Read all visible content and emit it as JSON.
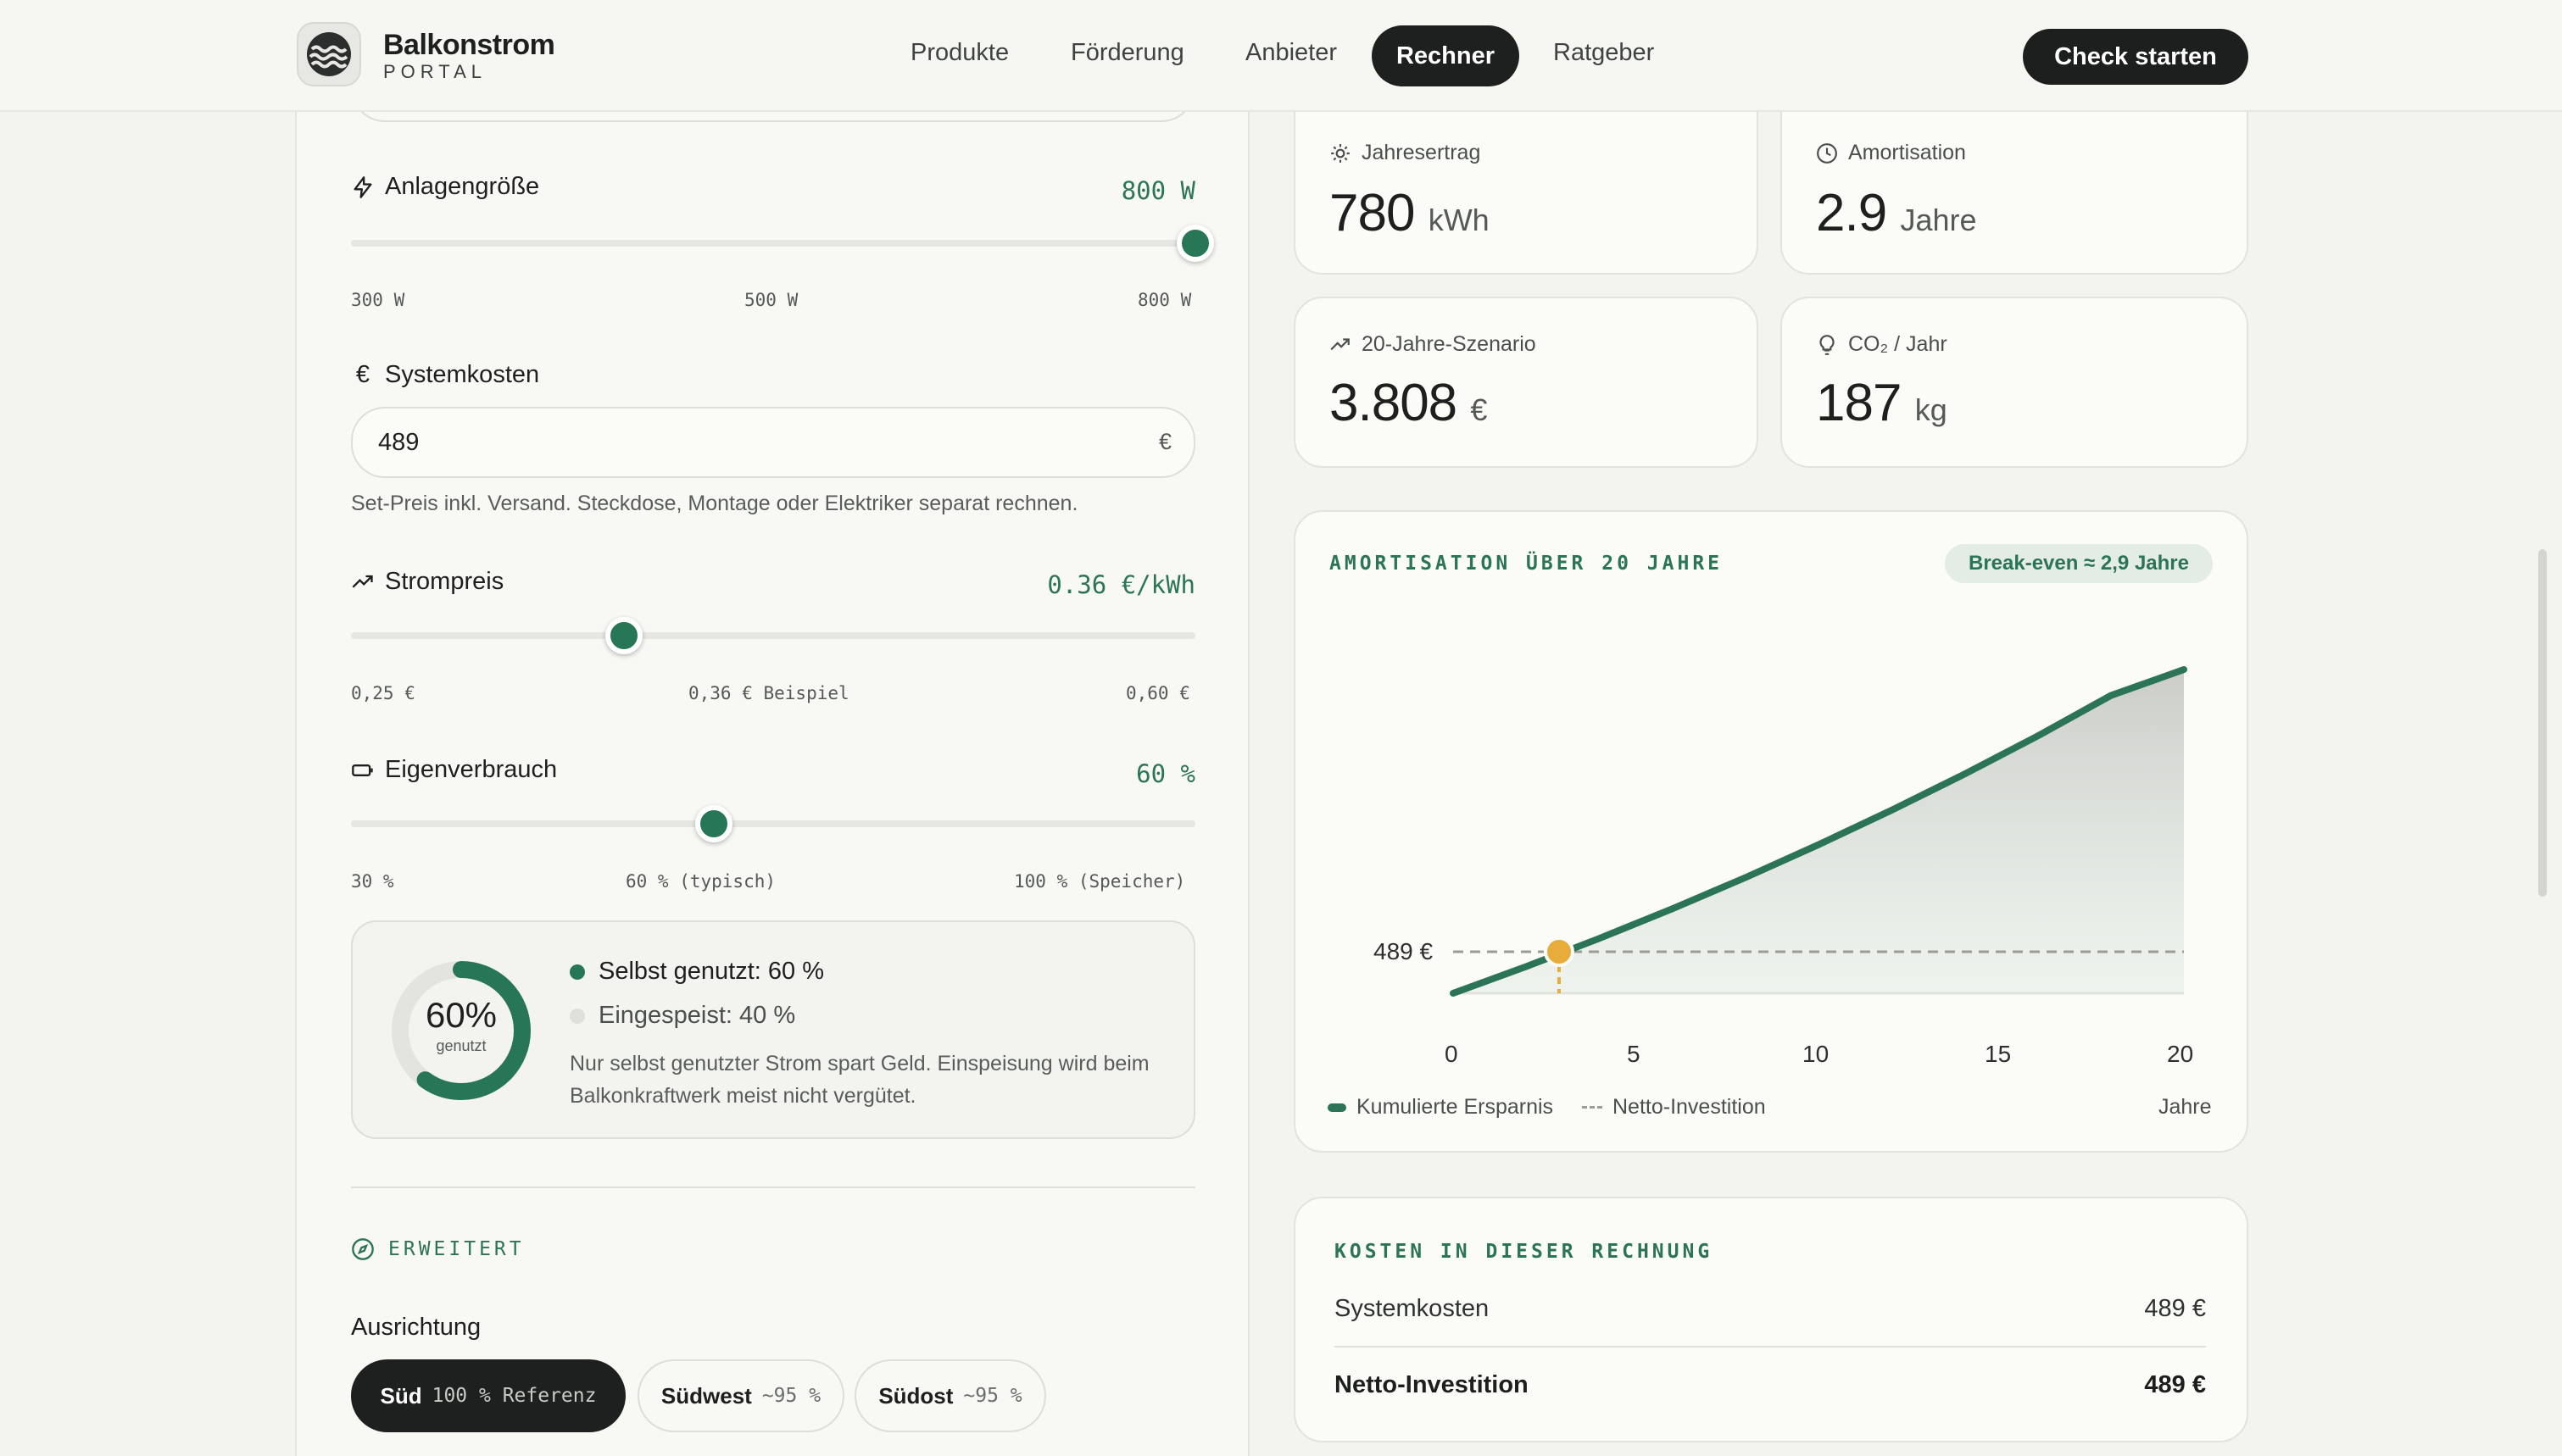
{
  "header": {
    "brand_name": "Balkonstrom",
    "brand_sub": "PORTAL",
    "nav": [
      "Produkte",
      "Förderung",
      "Anbieter",
      "Rechner",
      "Ratgeber"
    ],
    "cta": "Check starten"
  },
  "left": {
    "anlage": {
      "label": "Anlagengröße",
      "value": "800 W",
      "level": 1.0,
      "ticks": [
        "300 W",
        "500 W",
        "800 W"
      ]
    },
    "kosten": {
      "label": "Systemkosten",
      "value": "489",
      "currency": "€",
      "hint": "Set-Preis inkl. Versand. Steckdose, Montage oder Elektriker separat rechnen."
    },
    "strompreis": {
      "label": "Strompreis",
      "value": "0.36 €/kWh",
      "level": 0.323,
      "ticks": [
        "0,25 €",
        "0,36 € Beispiel",
        "0,60 €"
      ]
    },
    "eigenverbrauch": {
      "label": "Eigenverbrauch",
      "value": "60 %",
      "level": 0.43,
      "ticks": [
        "30 %",
        "60 % (typisch)",
        "100 % (Speicher)"
      ]
    },
    "usage": {
      "percent": "60%",
      "percent_value": 60,
      "sub": "genutzt",
      "self_used": "Selbst genutzt: 60 %",
      "fed_in": "Eingespeist: 40 %",
      "note_line1": "Nur selbst genutzter Strom spart Geld. Einspeisung wird beim",
      "note_line2": "Balkonkraftwerk meist nicht vergütet."
    },
    "advanced": {
      "title": "ERWEITERT",
      "ausrichtung_label": "Ausrichtung",
      "options": [
        {
          "name": "Süd",
          "detail": "100 % Referenz"
        },
        {
          "name": "Südwest",
          "detail": "~95 %"
        },
        {
          "name": "Südost",
          "detail": "~95 %"
        }
      ]
    }
  },
  "stats": {
    "jahresertrag": {
      "label": "Jahresertrag",
      "value": "780",
      "unit": "kWh"
    },
    "amortisation": {
      "label": "Amortisation",
      "value": "2.9",
      "unit": "Jahre"
    },
    "szenario": {
      "label": "20-Jahre-Szenario",
      "value": "3.808",
      "unit": "€"
    },
    "co2": {
      "label": "CO₂ / Jahr",
      "value": "187",
      "unit": "kg"
    }
  },
  "chart": {
    "title": "AMORTISATION ÜBER 20 JAHRE",
    "badge": "Break-even ≈ 2,9 Jahre",
    "investment_label": "489 €",
    "legend_savings": "Kumulierte Ersparnis",
    "legend_investment": "Netto-Investition",
    "xlabel": "Jahre"
  },
  "chart_data": {
    "type": "area",
    "x": [
      0,
      2,
      4,
      6,
      8,
      10,
      12,
      14,
      16,
      18,
      20
    ],
    "series": [
      {
        "name": "Kumulierte Ersparnis",
        "values": [
          0,
          314,
          645,
          994,
          1361,
          1747,
          2153,
          2579,
          3026,
          3502,
          3808
        ]
      },
      {
        "name": "Netto-Investition",
        "values": [
          489,
          489,
          489,
          489,
          489,
          489,
          489,
          489,
          489,
          489,
          489
        ]
      }
    ],
    "break_even": 2.9,
    "xticks": [
      "0",
      "5",
      "10",
      "15",
      "20"
    ],
    "xlim": [
      0,
      20
    ],
    "ylim": [
      0,
      3808
    ],
    "xlabel": "Jahre",
    "legend": "bottom-left",
    "colors": {
      "savings": "#2b7455",
      "investment": "#9a9c98",
      "break_even": "#e8ac3a"
    }
  },
  "costs": {
    "title": "KOSTEN IN DIESER RECHNUNG",
    "rows": [
      {
        "label": "Systemkosten",
        "value": "489 €"
      },
      {
        "label": "Netto-Investition",
        "value": "489 €"
      }
    ]
  }
}
